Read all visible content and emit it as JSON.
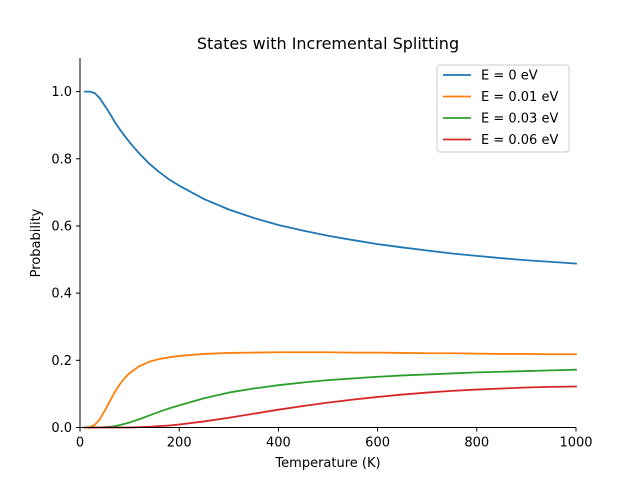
{
  "chart_data": {
    "type": "line",
    "title": "States with Incremental Splitting",
    "xlabel": "Temperature (K)",
    "ylabel": "Probability",
    "xlim": [
      0,
      1000
    ],
    "ylim": [
      0,
      1.1
    ],
    "xticks": [
      0,
      200,
      400,
      600,
      800,
      1000
    ],
    "yticks": [
      0.0,
      0.2,
      0.4,
      0.6,
      0.8,
      1.0
    ],
    "xtick_labels": [
      "0",
      "200",
      "400",
      "600",
      "800",
      "1000"
    ],
    "ytick_labels": [
      "0.0",
      "0.2",
      "0.4",
      "0.6",
      "0.8",
      "1.0"
    ],
    "grid": false,
    "legend_position": "top-right",
    "x": [
      10,
      20,
      30,
      40,
      50,
      60,
      70,
      80,
      90,
      100,
      120,
      140,
      160,
      180,
      200,
      250,
      300,
      350,
      400,
      450,
      500,
      550,
      600,
      650,
      700,
      750,
      800,
      850,
      900,
      950,
      1000
    ],
    "series": [
      {
        "name": "E = 0 eV",
        "color": "#1f77b4",
        "values": [
          1.0,
          1.0,
          0.995,
          0.98,
          0.958,
          0.935,
          0.91,
          0.888,
          0.868,
          0.849,
          0.815,
          0.785,
          0.76,
          0.738,
          0.72,
          0.68,
          0.649,
          0.624,
          0.603,
          0.586,
          0.571,
          0.558,
          0.546,
          0.536,
          0.527,
          0.518,
          0.511,
          0.504,
          0.498,
          0.493,
          0.488
        ]
      },
      {
        "name": "E = 0.01 eV",
        "color": "#ff7f0e",
        "values": [
          0.0,
          0.001,
          0.008,
          0.025,
          0.05,
          0.078,
          0.105,
          0.128,
          0.147,
          0.162,
          0.183,
          0.196,
          0.204,
          0.209,
          0.213,
          0.219,
          0.222,
          0.223,
          0.224,
          0.224,
          0.224,
          0.223,
          0.223,
          0.222,
          0.221,
          0.221,
          0.22,
          0.219,
          0.219,
          0.218,
          0.218
        ]
      },
      {
        "name": "E = 0.03 eV",
        "color": "#2ca02c",
        "values": [
          0.0,
          0.0,
          0.0,
          0.0,
          0.001,
          0.002,
          0.004,
          0.007,
          0.011,
          0.015,
          0.025,
          0.036,
          0.047,
          0.057,
          0.066,
          0.087,
          0.104,
          0.116,
          0.126,
          0.134,
          0.141,
          0.146,
          0.151,
          0.155,
          0.158,
          0.161,
          0.164,
          0.166,
          0.168,
          0.17,
          0.172
        ]
      },
      {
        "name": "E = 0.06 eV",
        "color": "#d62728",
        "values": [
          0.0,
          0.0,
          0.0,
          0.0,
          0.0,
          0.0,
          0.0,
          0.0,
          0.0,
          0.0,
          0.001,
          0.002,
          0.004,
          0.006,
          0.009,
          0.018,
          0.029,
          0.041,
          0.053,
          0.064,
          0.074,
          0.083,
          0.091,
          0.098,
          0.104,
          0.109,
          0.113,
          0.116,
          0.119,
          0.121,
          0.122
        ]
      }
    ]
  }
}
